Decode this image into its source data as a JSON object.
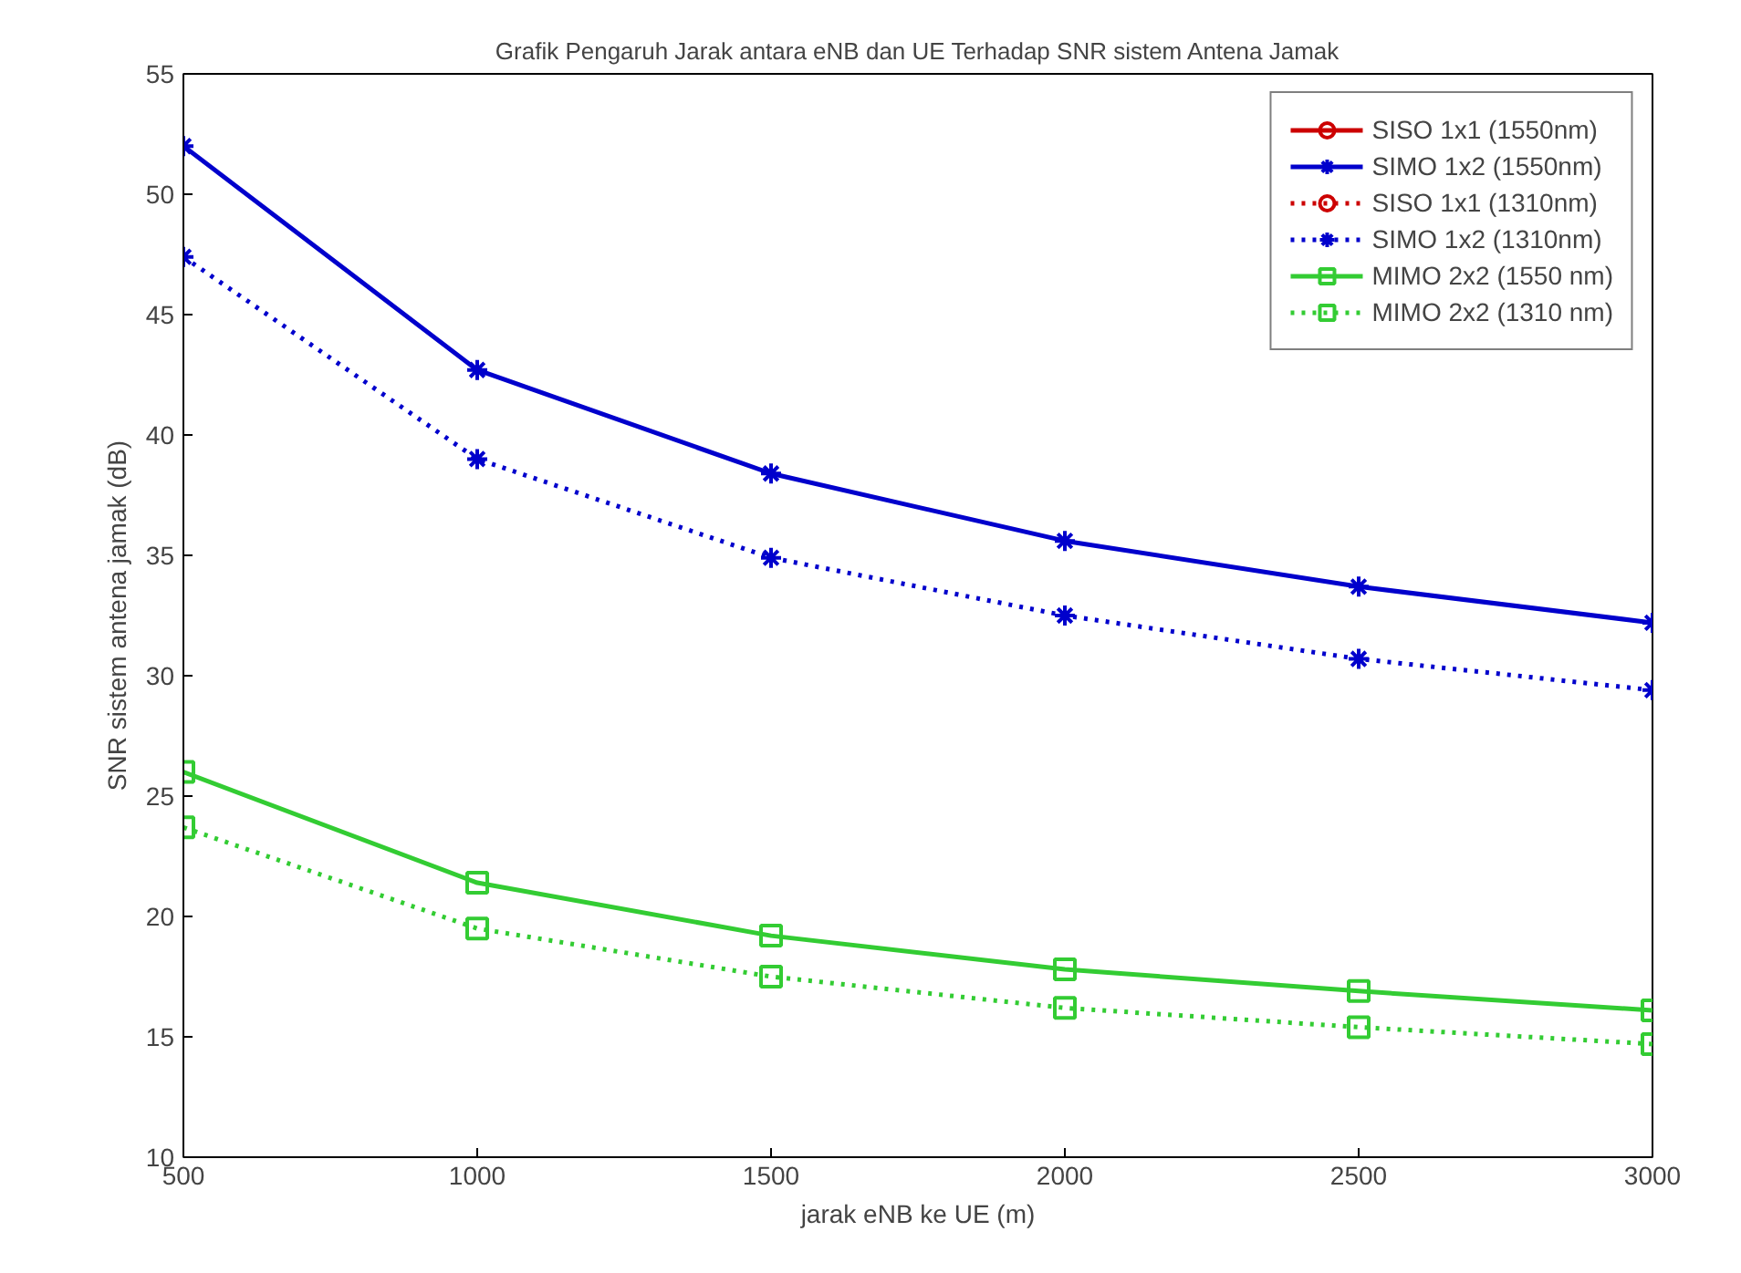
{
  "chart_data": {
    "type": "line",
    "title": "Grafik Pengaruh Jarak antara eNB dan UE Terhadap SNR sistem Antena Jamak",
    "xlabel": "jarak eNB ke UE (m)",
    "ylabel": "SNR sistem antena jamak (dB)",
    "x": [
      500,
      1000,
      1500,
      2000,
      2500,
      3000
    ],
    "xlim": [
      500,
      3000
    ],
    "xticks": [
      500,
      1000,
      1500,
      2000,
      2500,
      3000
    ],
    "ylim": [
      10,
      55
    ],
    "yticks": [
      10,
      15,
      20,
      25,
      30,
      35,
      40,
      45,
      50,
      55
    ],
    "grid": false,
    "legend": "top right",
    "series": [
      {
        "name": "SISO 1x1 (1550nm)",
        "color": "#cc0000",
        "marker": "circle",
        "line_style": "solid",
        "values": [
          null,
          null,
          null,
          null,
          null,
          null
        ]
      },
      {
        "name": "SIMO 1x2 (1550nm)",
        "color": "#0000cc",
        "marker": "cross",
        "line_style": "solid",
        "values": [
          52.0,
          42.7,
          38.4,
          35.6,
          33.7,
          32.2
        ]
      },
      {
        "name": "SISO 1x1 (1310nm)",
        "color": "#cc0000",
        "marker": "circle",
        "line_style": "dotted",
        "values": [
          null,
          null,
          null,
          null,
          null,
          null
        ]
      },
      {
        "name": "SIMO 1x2 (1310nm)",
        "color": "#0000cc",
        "marker": "cross",
        "line_style": "dotted",
        "values": [
          47.4,
          39.0,
          34.9,
          32.5,
          30.7,
          29.4
        ]
      },
      {
        "name": "MIMO 2x2 (1550 nm)",
        "color": "#33cc33",
        "marker": "square",
        "line_style": "solid",
        "values": [
          26.0,
          21.4,
          19.2,
          17.8,
          16.9,
          16.1
        ]
      },
      {
        "name": "MIMO 2x2 (1310 nm)",
        "color": "#33cc33",
        "marker": "square",
        "line_style": "dotted",
        "values": [
          23.7,
          19.5,
          17.5,
          16.2,
          15.4,
          14.7
        ]
      }
    ]
  }
}
